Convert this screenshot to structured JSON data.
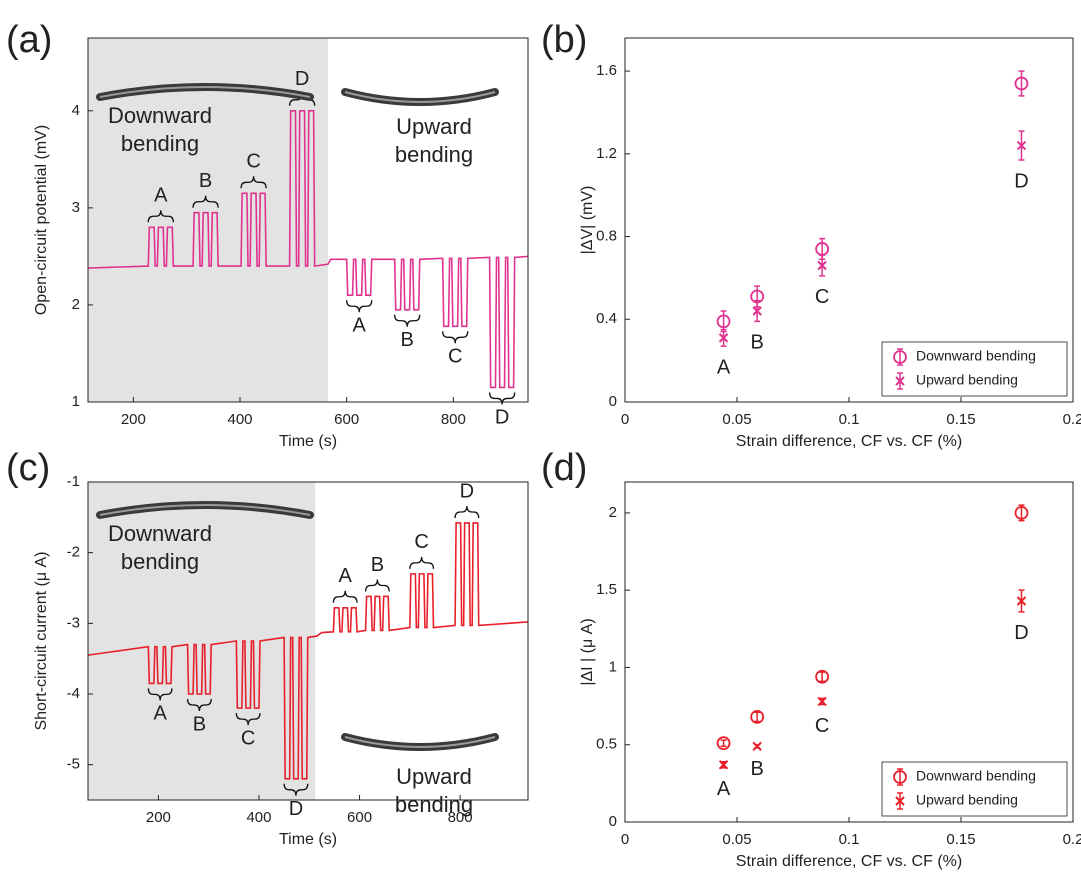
{
  "chart_data": [
    {
      "type": "line",
      "panel_label": "(a)",
      "xlabel": "Time (s)",
      "ylabel": "Open-circuit potential (mV)",
      "color": "#e0338f",
      "xlim": [
        115,
        940
      ],
      "ylim": [
        1,
        4.75
      ],
      "xticks": [
        200,
        400,
        600,
        800
      ],
      "yticks": [
        1,
        2,
        3,
        4
      ],
      "shaded_until": 565,
      "down_text": [
        "Downward",
        "bending"
      ],
      "up_text": [
        "Upward",
        "bending"
      ],
      "down_groups": [
        "A",
        "B",
        "C",
        "D"
      ],
      "up_groups": [
        "A",
        "B",
        "C",
        "D"
      ],
      "x": [
        115,
        228,
        230,
        239,
        241,
        245,
        247,
        256,
        258,
        262,
        264,
        273,
        275,
        312,
        314,
        323,
        325,
        329,
        331,
        340,
        342,
        346,
        348,
        357,
        359,
        402,
        404,
        413,
        415,
        419,
        421,
        430,
        432,
        436,
        438,
        447,
        449,
        493,
        495,
        504,
        506,
        510,
        512,
        521,
        523,
        527,
        529,
        538,
        540,
        565,
        570,
        600,
        602,
        611,
        613,
        617,
        619,
        628,
        630,
        634,
        636,
        645,
        647,
        690,
        692,
        701,
        703,
        707,
        709,
        718,
        720,
        724,
        726,
        735,
        737,
        780,
        782,
        791,
        793,
        797,
        799,
        808,
        810,
        814,
        816,
        825,
        827,
        868,
        870,
        879,
        881,
        885,
        887,
        896,
        898,
        902,
        904,
        913,
        915,
        940
      ],
      "values": [
        2.38,
        2.4,
        2.8,
        2.8,
        2.4,
        2.4,
        2.8,
        2.8,
        2.4,
        2.4,
        2.8,
        2.8,
        2.4,
        2.4,
        2.95,
        2.95,
        2.4,
        2.4,
        2.95,
        2.95,
        2.4,
        2.4,
        2.95,
        2.95,
        2.4,
        2.4,
        3.15,
        3.15,
        2.4,
        2.4,
        3.15,
        3.15,
        2.4,
        2.4,
        3.15,
        3.15,
        2.4,
        2.4,
        4,
        4,
        2.4,
        2.4,
        4,
        4,
        2.4,
        2.4,
        4,
        4,
        2.4,
        2.42,
        2.47,
        2.47,
        2.1,
        2.1,
        2.47,
        2.47,
        2.1,
        2.1,
        2.47,
        2.47,
        2.1,
        2.1,
        2.47,
        2.47,
        1.95,
        1.95,
        2.47,
        2.47,
        1.95,
        1.95,
        2.47,
        2.47,
        1.95,
        1.95,
        2.47,
        2.48,
        1.78,
        1.78,
        2.48,
        2.48,
        1.78,
        1.78,
        2.48,
        2.48,
        1.78,
        1.78,
        2.48,
        2.49,
        1.15,
        1.15,
        2.49,
        2.49,
        1.15,
        1.15,
        2.49,
        2.49,
        1.15,
        1.15,
        2.49,
        2.5
      ]
    },
    {
      "type": "scatter",
      "panel_label": "(b)",
      "xlabel": "Strain difference, CF vs. CF (%)",
      "ylabel": "|ΔV| (mV)",
      "xlim": [
        0,
        0.2
      ],
      "ylim": [
        0,
        1.76
      ],
      "xticks": [
        0,
        0.05,
        0.1,
        0.15,
        0.2
      ],
      "yticks": [
        0,
        0.4,
        0.8,
        1.2,
        1.6
      ],
      "legend": "lower right",
      "point_labels": [
        "A",
        "B",
        "C",
        "D"
      ],
      "x": [
        0.044,
        0.059,
        0.088,
        0.177
      ],
      "series": [
        {
          "name": "Downward bending",
          "color": "#e0338f",
          "marker": "circle",
          "values": [
            0.39,
            0.51,
            0.74,
            1.54
          ],
          "errors": [
            0.05,
            0.05,
            0.05,
            0.06
          ]
        },
        {
          "name": "Upward bending",
          "color": "#e0338f",
          "marker": "x",
          "values": [
            0.31,
            0.44,
            0.66,
            1.24
          ],
          "errors": [
            0.04,
            0.05,
            0.05,
            0.07
          ]
        }
      ]
    },
    {
      "type": "line",
      "panel_label": "(c)",
      "xlabel": "Time (s)",
      "ylabel": "Short-circuit current (μ A)",
      "color": "#e8202a",
      "xlim": [
        60,
        935
      ],
      "ylim": [
        -5.5,
        -1
      ],
      "xticks": [
        200,
        400,
        600,
        800
      ],
      "yticks": [
        -5,
        -4,
        -3,
        -2,
        -1
      ],
      "shaded_until": 512,
      "down_text": [
        "Downward",
        "bending"
      ],
      "up_text": [
        "Upward",
        "bending"
      ],
      "down_groups": [
        "A",
        "B",
        "C",
        "D"
      ],
      "up_groups": [
        "A",
        "B",
        "C",
        "D"
      ],
      "x": [
        60,
        180,
        182,
        191,
        193,
        197,
        199,
        208,
        210,
        214,
        216,
        225,
        227,
        258,
        260,
        269,
        271,
        275,
        277,
        286,
        288,
        292,
        294,
        303,
        305,
        355,
        357,
        366,
        368,
        372,
        374,
        383,
        385,
        389,
        391,
        400,
        402,
        450,
        452,
        461,
        463,
        467,
        469,
        478,
        480,
        484,
        486,
        495,
        497,
        515,
        525,
        548,
        550,
        559,
        561,
        565,
        567,
        576,
        578,
        582,
        584,
        593,
        595,
        612,
        614,
        623,
        625,
        629,
        631,
        640,
        642,
        646,
        648,
        657,
        659,
        700,
        702,
        711,
        713,
        717,
        719,
        728,
        730,
        734,
        736,
        745,
        747,
        790,
        792,
        801,
        803,
        807,
        809,
        818,
        820,
        824,
        826,
        835,
        837,
        935
      ],
      "values": [
        -3.45,
        -3.33,
        -3.85,
        -3.85,
        -3.33,
        -3.33,
        -3.85,
        -3.85,
        -3.33,
        -3.33,
        -3.85,
        -3.85,
        -3.33,
        -3.3,
        -4,
        -4,
        -3.3,
        -3.3,
        -4,
        -4,
        -3.3,
        -3.3,
        -4,
        -4,
        -3.3,
        -3.25,
        -4.2,
        -4.2,
        -3.25,
        -3.25,
        -4.2,
        -4.2,
        -3.25,
        -3.25,
        -4.2,
        -4.2,
        -3.25,
        -3.2,
        -5.2,
        -5.2,
        -3.2,
        -3.2,
        -5.2,
        -5.2,
        -3.2,
        -3.2,
        -5.2,
        -5.2,
        -3.2,
        -3.18,
        -3.13,
        -3.12,
        -2.78,
        -2.78,
        -3.12,
        -3.12,
        -2.78,
        -2.78,
        -3.12,
        -3.12,
        -2.78,
        -2.78,
        -3.12,
        -3.1,
        -2.62,
        -2.62,
        -3.1,
        -3.1,
        -2.62,
        -2.62,
        -3.1,
        -3.1,
        -2.62,
        -2.62,
        -3.1,
        -3.06,
        -2.3,
        -2.3,
        -3.06,
        -3.06,
        -2.3,
        -2.3,
        -3.06,
        -3.06,
        -2.3,
        -2.3,
        -3.06,
        -3.03,
        -1.58,
        -1.58,
        -3.03,
        -3.03,
        -1.58,
        -1.58,
        -3.03,
        -3.03,
        -1.58,
        -1.58,
        -3.03,
        -2.98
      ]
    },
    {
      "type": "scatter",
      "panel_label": "(d)",
      "xlabel": "Strain difference, CF vs. CF (%)",
      "ylabel": "|ΔI | (μ A)",
      "xlim": [
        0,
        0.2
      ],
      "ylim": [
        0,
        2.2
      ],
      "xticks": [
        0,
        0.05,
        0.1,
        0.15,
        0.2
      ],
      "yticks": [
        0,
        0.5,
        1,
        1.5,
        2
      ],
      "legend": "lower right",
      "point_labels": [
        "A",
        "B",
        "C",
        "D"
      ],
      "x": [
        0.044,
        0.059,
        0.088,
        0.177
      ],
      "series": [
        {
          "name": "Downward bending",
          "color": "#e8202a",
          "marker": "circle",
          "values": [
            0.51,
            0.68,
            0.94,
            2.0
          ],
          "errors": [
            0.02,
            0.03,
            0.03,
            0.05
          ]
        },
        {
          "name": "Upward bending",
          "color": "#e8202a",
          "marker": "x",
          "values": [
            0.37,
            0.49,
            0.78,
            1.43
          ],
          "errors": [
            0.02,
            0.01,
            0.02,
            0.07
          ]
        }
      ]
    }
  ]
}
